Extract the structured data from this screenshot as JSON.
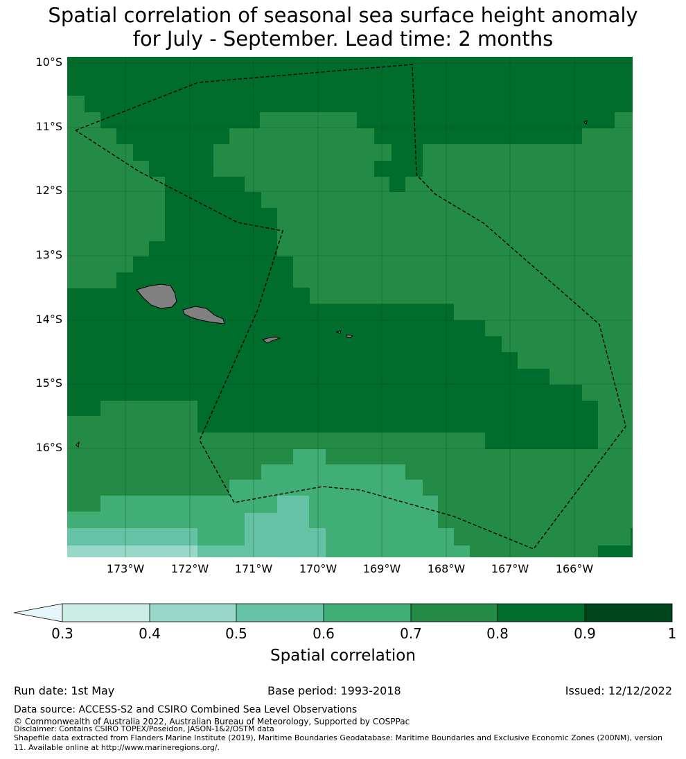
{
  "title": {
    "line1": "Spatial correlation of seasonal sea surface height anomaly",
    "line2": "for July - September. Lead time: 2 months"
  },
  "map": {
    "lat_labels": [
      "10°S",
      "11°S",
      "12°S",
      "13°S",
      "14°S",
      "15°S",
      "16°S"
    ],
    "lon_labels": [
      "173°W",
      "172°W",
      "171°W",
      "170°W",
      "169°W",
      "168°W",
      "167°W",
      "166°W"
    ],
    "lon_range_deg": [
      -173.9,
      -165.1
    ],
    "lat_range_deg": [
      -17.8,
      -10.0
    ],
    "land_color": "#808080",
    "boundary_style": "dashed"
  },
  "colorbar": {
    "label": "Spatial correlation",
    "ticks": [
      "0.3",
      "0.4",
      "0.5",
      "0.6",
      "0.7",
      "0.8",
      "0.9",
      "1"
    ],
    "extend": "min",
    "colors": [
      "#e5f5f9",
      "#ccece6",
      "#99d8c9",
      "#66c2a4",
      "#41ae76",
      "#238b45",
      "#006d2c",
      "#00441b"
    ]
  },
  "meta": {
    "run_date": "Run date: 1st May",
    "base_period": "Base period: 1993-2018",
    "issued": "Issued: 12/12/2022"
  },
  "footer": {
    "data_source": "Data source: ACCESS-S2 and CSIRO Combined Sea Level Observations",
    "copyright": "© Commonwealth of Australia 2022, Australian Bureau of Meteorology, Supported by COSPPac",
    "disclaimer": "Disclaimer: Contains CSIRO TOPEX/Poseidon, JASON-1&2/OSTM data",
    "shapefile": "Shapefile data extracted from Flanders Marine Institute (2019), Maritime Boundaries Geodatabase: Maritime Boundaries and Exclusive Economic Zones (200NM), version 11. Available online at http://www.marineregions.org/."
  }
}
